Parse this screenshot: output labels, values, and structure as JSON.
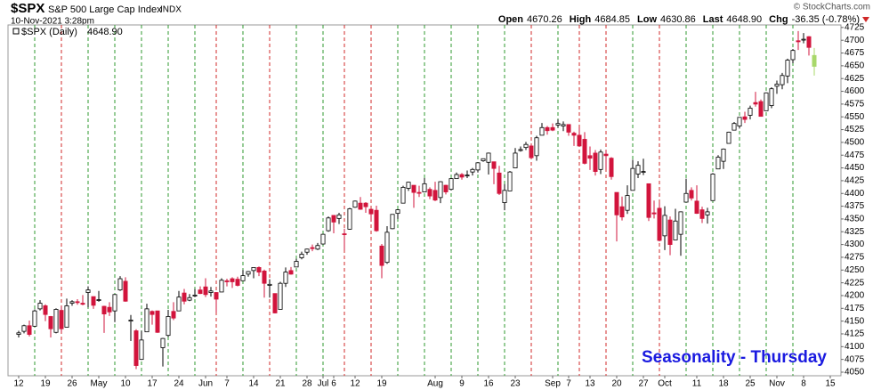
{
  "chart_data": {
    "type": "candlestick",
    "header": {
      "symbol": "$SPX",
      "name": "S&P 500 Large Cap Index",
      "exchange": "INDX",
      "timestamp": "10-Nov-2021 3:28pm",
      "quote": [
        {
          "label": "Open",
          "value": "4670.26"
        },
        {
          "label": "High",
          "value": "4684.85"
        },
        {
          "label": "Low",
          "value": "4630.86"
        },
        {
          "label": "Last",
          "value": "4648.90"
        },
        {
          "label": "Chg",
          "value": "-36.35 (-0.78%)"
        }
      ],
      "copyright": "© StockCharts.com"
    },
    "annotation": "Seasonality - Thursday",
    "annotation_color": "#1a1ae0",
    "x": [
      "2021-04-12",
      "2021-04-13",
      "2021-04-14",
      "2021-04-15",
      "2021-04-16",
      "2021-04-19",
      "2021-04-20",
      "2021-04-21",
      "2021-04-22",
      "2021-04-23",
      "2021-04-26",
      "2021-04-27",
      "2021-04-28",
      "2021-04-29",
      "2021-04-30",
      "2021-05-03",
      "2021-05-04",
      "2021-05-05",
      "2021-05-06",
      "2021-05-07",
      "2021-05-10",
      "2021-05-11",
      "2021-05-12",
      "2021-05-13",
      "2021-05-14",
      "2021-05-17",
      "2021-05-18",
      "2021-05-19",
      "2021-05-20",
      "2021-05-21",
      "2021-05-24",
      "2021-05-25",
      "2021-05-26",
      "2021-05-27",
      "2021-05-28",
      "2021-06-01",
      "2021-06-02",
      "2021-06-03",
      "2021-06-04",
      "2021-06-07",
      "2021-06-08",
      "2021-06-09",
      "2021-06-10",
      "2021-06-11",
      "2021-06-14",
      "2021-06-15",
      "2021-06-16",
      "2021-06-17",
      "2021-06-18",
      "2021-06-21",
      "2021-06-22",
      "2021-06-23",
      "2021-06-24",
      "2021-06-25",
      "2021-06-28",
      "2021-06-29",
      "2021-06-30",
      "2021-07-01",
      "2021-07-02",
      "2021-07-06",
      "2021-07-07",
      "2021-07-08",
      "2021-07-09",
      "2021-07-12",
      "2021-07-13",
      "2021-07-14",
      "2021-07-15",
      "2021-07-16",
      "2021-07-19",
      "2021-07-20",
      "2021-07-21",
      "2021-07-22",
      "2021-07-23",
      "2021-07-26",
      "2021-07-27",
      "2021-07-28",
      "2021-07-29",
      "2021-07-30",
      "2021-08-02",
      "2021-08-03",
      "2021-08-04",
      "2021-08-05",
      "2021-08-06",
      "2021-08-09",
      "2021-08-10",
      "2021-08-11",
      "2021-08-12",
      "2021-08-13",
      "2021-08-16",
      "2021-08-17",
      "2021-08-18",
      "2021-08-19",
      "2021-08-20",
      "2021-08-23",
      "2021-08-24",
      "2021-08-25",
      "2021-08-26",
      "2021-08-27",
      "2021-08-30",
      "2021-08-31",
      "2021-09-01",
      "2021-09-02",
      "2021-09-03",
      "2021-09-07",
      "2021-09-08",
      "2021-09-09",
      "2021-09-10",
      "2021-09-13",
      "2021-09-14",
      "2021-09-15",
      "2021-09-16",
      "2021-09-17",
      "2021-09-20",
      "2021-09-21",
      "2021-09-22",
      "2021-09-23",
      "2021-09-24",
      "2021-09-27",
      "2021-09-28",
      "2021-09-29",
      "2021-09-30",
      "2021-10-01",
      "2021-10-04",
      "2021-10-05",
      "2021-10-06",
      "2021-10-07",
      "2021-10-08",
      "2021-10-11",
      "2021-10-12",
      "2021-10-13",
      "2021-10-14",
      "2021-10-15",
      "2021-10-18",
      "2021-10-19",
      "2021-10-20",
      "2021-10-21",
      "2021-10-22",
      "2021-10-25",
      "2021-10-26",
      "2021-10-27",
      "2021-10-28",
      "2021-10-29",
      "2021-11-01",
      "2021-11-02",
      "2021-11-03",
      "2021-11-04",
      "2021-11-05",
      "2021-11-08",
      "2021-11-09",
      "2021-11-10"
    ],
    "series": [
      {
        "name": "$SPX (Daily)",
        "last_label": "4648.90",
        "open": [
          4124,
          4130,
          4141,
          4140,
          4174,
          4180,
          4159,
          4128,
          4171,
          4138,
          4185,
          4188,
          4185,
          4206,
          4198,
          4191,
          4179,
          4177,
          4170,
          4211,
          4228,
          4150,
          4131,
          4075,
          4129,
          4169,
          4170,
          4098,
          4122,
          4169,
          4170,
          4205,
          4191,
          4201,
          4211,
          4217,
          4206,
          4206,
          4207,
          4229,
          4233,
          4232,
          4229,
          4242,
          4249,
          4255,
          4248,
          4220,
          4204,
          4173,
          4224,
          4249,
          4256,
          4274,
          4285,
          4294,
          4291,
          4301,
          4327,
          4357,
          4351,
          4321,
          4330,
          4373,
          4381,
          4381,
          4369,
          4367,
          4297,
          4265,
          4331,
          4361,
          4381,
          4410,
          4416,
          4402,
          4403,
          4408,
          4406,
          4392,
          4416,
          4408,
          4429,
          4437,
          4436,
          4442,
          4446,
          4464,
          4461,
          4462,
          4440,
          4382,
          4405,
          4450,
          4484,
          4490,
          4493,
          4474,
          4514,
          4529,
          4529,
          4534,
          4532,
          4535,
          4518,
          4514,
          4506,
          4474,
          4479,
          4447,
          4477,
          4469,
          4402,
          4374,
          4367,
          4406,
          4438,
          4442,
          4419,
          4362,
          4371,
          4317,
          4348,
          4309,
          4320,
          4383,
          4406,
          4385,
          4368,
          4358,
          4386,
          4448,
          4463,
          4498,
          4524,
          4532,
          4550,
          4553,
          4578,
          4580,
          4562,
          4572,
          4610,
          4613,
          4630,
          4662,
          4699,
          4701,
          4707,
          4670.26
        ],
        "high": [
          4131,
          4143,
          4151,
          4173,
          4191,
          4183,
          4160,
          4175,
          4179,
          4194,
          4191,
          4193,
          4201,
          4218,
          4198,
          4209,
          4180,
          4187,
          4203,
          4238,
          4236,
          4162,
          4134,
          4131,
          4184,
          4171,
          4170,
          4117,
          4172,
          4187,
          4209,
          4213,
          4203,
          4213,
          4218,
          4234,
          4217,
          4207,
          4234,
          4233,
          4236,
          4237,
          4250,
          4248,
          4255,
          4257,
          4251,
          4232,
          4204,
          4227,
          4255,
          4256,
          4272,
          4286,
          4292,
          4300,
          4303,
          4321,
          4355,
          4357,
          4362,
          4331,
          4372,
          4386,
          4393,
          4383,
          4369,
          4376,
          4301,
          4336,
          4359,
          4369,
          4415,
          4423,
          4416,
          4415,
          4430,
          4412,
          4423,
          4424,
          4417,
          4430,
          4441,
          4440,
          4445,
          4450,
          4461,
          4468,
          4480,
          4462,
          4454,
          4418,
          4444,
          4489,
          4492,
          4501,
          4495,
          4513,
          4538,
          4532,
          4537,
          4545,
          4541,
          4535,
          4521,
          4529,
          4520,
          4492,
          4485,
          4486,
          4485,
          4471,
          4402,
          4394,
          4416,
          4466,
          4463,
          4468,
          4419,
          4386,
          4382,
          4375,
          4355,
          4370,
          4365,
          4429,
          4412,
          4416,
          4374,
          4372,
          4440,
          4475,
          4488,
          4521,
          4540,
          4549,
          4560,
          4572,
          4599,
          4584,
          4598,
          4608,
          4621,
          4636,
          4664,
          4683,
          4718,
          4714,
          4708,
          4684.85
        ],
        "low": [
          4118,
          4126,
          4120,
          4139,
          4171,
          4150,
          4118,
          4126,
          4128,
          4138,
          4180,
          4182,
          4181,
          4177,
          4174,
          4188,
          4127,
          4160,
          4148,
          4209,
          4188,
          4111,
          4056,
          4074,
          4129,
          4143,
          4127,
          4061,
          4119,
          4152,
          4170,
          4183,
          4189,
          4197,
          4203,
          4197,
          4198,
          4167,
          4207,
          4218,
          4215,
          4218,
          4229,
          4237,
          4234,
          4238,
          4196,
          4196,
          4165,
          4173,
          4217,
          4241,
          4256,
          4271,
          4280,
          4287,
          4289,
          4300,
          4325,
          4322,
          4340,
          4289,
          4329,
          4372,
          4368,
          4362,
          4345,
          4325,
          4234,
          4262,
          4330,
          4350,
          4381,
          4405,
          4372,
          4393,
          4403,
          4389,
          4385,
          4381,
          4398,
          4406,
          4429,
          4427,
          4430,
          4435,
          4441,
          4462,
          4437,
          4418,
          4397,
          4367,
          4405,
          4450,
          4482,
          4485,
          4468,
          4464,
          4514,
          4515,
          4522,
          4529,
          4522,
          4513,
          4493,
          4492,
          4457,
          4446,
          4435,
          4438,
          4448,
          4427,
          4306,
          4347,
          4360,
          4406,
          4430,
          4436,
          4346,
          4351,
          4306,
          4289,
          4279,
          4309,
          4278,
          4383,
          4386,
          4360,
          4342,
          4341,
          4386,
          4448,
          4448,
          4498,
          4524,
          4527,
          4538,
          4545,
          4570,
          4551,
          4562,
          4567,
          4595,
          4604,
          4616,
          4655,
          4681,
          4694,
          4670,
          4630.86
        ],
        "close": [
          4127,
          4141,
          4124,
          4170,
          4185,
          4163,
          4135,
          4173,
          4135,
          4180,
          4188,
          4187,
          4183,
          4211,
          4181,
          4192,
          4164,
          4168,
          4202,
          4233,
          4189,
          4152,
          4063,
          4113,
          4174,
          4163,
          4128,
          4116,
          4159,
          4156,
          4197,
          4189,
          4196,
          4201,
          4204,
          4202,
          4209,
          4193,
          4230,
          4227,
          4227,
          4220,
          4239,
          4247,
          4255,
          4246,
          4224,
          4222,
          4166,
          4224,
          4246,
          4242,
          4267,
          4281,
          4291,
          4292,
          4298,
          4320,
          4352,
          4344,
          4358,
          4320,
          4370,
          4385,
          4369,
          4374,
          4360,
          4327,
          4259,
          4324,
          4359,
          4368,
          4412,
          4422,
          4402,
          4401,
          4419,
          4395,
          4387,
          4423,
          4403,
          4429,
          4437,
          4432,
          4436,
          4447,
          4460,
          4468,
          4479,
          4449,
          4400,
          4406,
          4442,
          4479,
          4486,
          4496,
          4470,
          4509,
          4529,
          4523,
          4524,
          4537,
          4535,
          4520,
          4514,
          4493,
          4459,
          4469,
          4443,
          4481,
          4474,
          4433,
          4358,
          4354,
          4396,
          4449,
          4455,
          4443,
          4353,
          4360,
          4308,
          4357,
          4300,
          4346,
          4364,
          4400,
          4391,
          4361,
          4351,
          4364,
          4438,
          4471,
          4487,
          4520,
          4537,
          4549,
          4545,
          4567,
          4575,
          4551,
          4597,
          4605,
          4614,
          4631,
          4661,
          4680,
          4697,
          4702,
          4686,
          4648.9
        ]
      }
    ],
    "up_color": "#ffffff",
    "down_color": "#d2143c",
    "last_color": "#a8d86a",
    "thursday_up_color": "#2f9a2f",
    "thursday_down_color": "#d02828",
    "xlim": [
      "2021-04-08",
      "2021-11-17"
    ],
    "xticks": [
      {
        "value": "2021-04-12",
        "label": "12"
      },
      {
        "value": "2021-04-19",
        "label": "19"
      },
      {
        "value": "2021-04-26",
        "label": "26"
      },
      {
        "value": "2021-05-03",
        "label": "May"
      },
      {
        "value": "2021-05-10",
        "label": "10"
      },
      {
        "value": "2021-05-17",
        "label": "17"
      },
      {
        "value": "2021-05-24",
        "label": "24"
      },
      {
        "value": "2021-06-01",
        "label": "Jun"
      },
      {
        "value": "2021-06-07",
        "label": "7"
      },
      {
        "value": "2021-06-14",
        "label": "14"
      },
      {
        "value": "2021-06-21",
        "label": "21"
      },
      {
        "value": "2021-06-28",
        "label": "28"
      },
      {
        "value": "2021-07-01",
        "label": "Jul"
      },
      {
        "value": "2021-07-06",
        "label": "6"
      },
      {
        "value": "2021-07-12",
        "label": "12"
      },
      {
        "value": "2021-07-19",
        "label": "19"
      },
      {
        "value": "2021-08-02",
        "label": "Aug"
      },
      {
        "value": "2021-08-09",
        "label": "9"
      },
      {
        "value": "2021-08-16",
        "label": "16"
      },
      {
        "value": "2021-08-23",
        "label": "23"
      },
      {
        "value": "2021-09-01",
        "label": "Sep"
      },
      {
        "value": "2021-09-07",
        "label": "7"
      },
      {
        "value": "2021-09-13",
        "label": "13"
      },
      {
        "value": "2021-09-20",
        "label": "20"
      },
      {
        "value": "2021-09-27",
        "label": "27"
      },
      {
        "value": "2021-10-01",
        "label": "Oct"
      },
      {
        "value": "2021-10-11",
        "label": "11"
      },
      {
        "value": "2021-10-18",
        "label": "18"
      },
      {
        "value": "2021-10-25",
        "label": "25"
      },
      {
        "value": "2021-11-01",
        "label": "Nov"
      },
      {
        "value": "2021-11-08",
        "label": "8"
      },
      {
        "value": "2021-11-15",
        "label": "15"
      }
    ],
    "ylim": [
      4043,
      4730
    ],
    "yticks": [
      4050,
      4075,
      4100,
      4125,
      4150,
      4175,
      4200,
      4225,
      4250,
      4275,
      4300,
      4325,
      4350,
      4375,
      4400,
      4425,
      4450,
      4475,
      4500,
      4525,
      4550,
      4575,
      4600,
      4625,
      4650,
      4675,
      4700,
      4725
    ]
  }
}
